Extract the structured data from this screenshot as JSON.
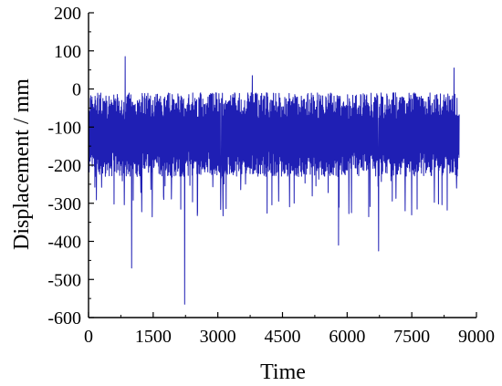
{
  "chart_data": {
    "type": "line",
    "title": "",
    "xlabel": "Time",
    "ylabel": "Displacement / mm",
    "xlim": [
      0,
      9000
    ],
    "ylim": [
      -600,
      200
    ],
    "x_ticks": [
      0,
      1500,
      3000,
      4500,
      6000,
      7500,
      9000
    ],
    "y_ticks": [
      200,
      100,
      0,
      -100,
      -200,
      -300,
      -400,
      -500,
      -600
    ],
    "grid": false,
    "line_color": "#1f1fb4",
    "series": [
      {
        "x_start": 0,
        "x_end": 8600,
        "baseline_mean": -110,
        "band_typical": [
          -230,
          -10
        ],
        "notable_points": [
          {
            "x": 850,
            "y": 85
          },
          {
            "x": 1000,
            "y": -470
          },
          {
            "x": 2230,
            "y": -565
          },
          {
            "x": 3800,
            "y": 35
          },
          {
            "x": 5800,
            "y": -410
          },
          {
            "x": 6730,
            "y": -425
          },
          {
            "x": 8480,
            "y": 55
          }
        ]
      }
    ]
  }
}
